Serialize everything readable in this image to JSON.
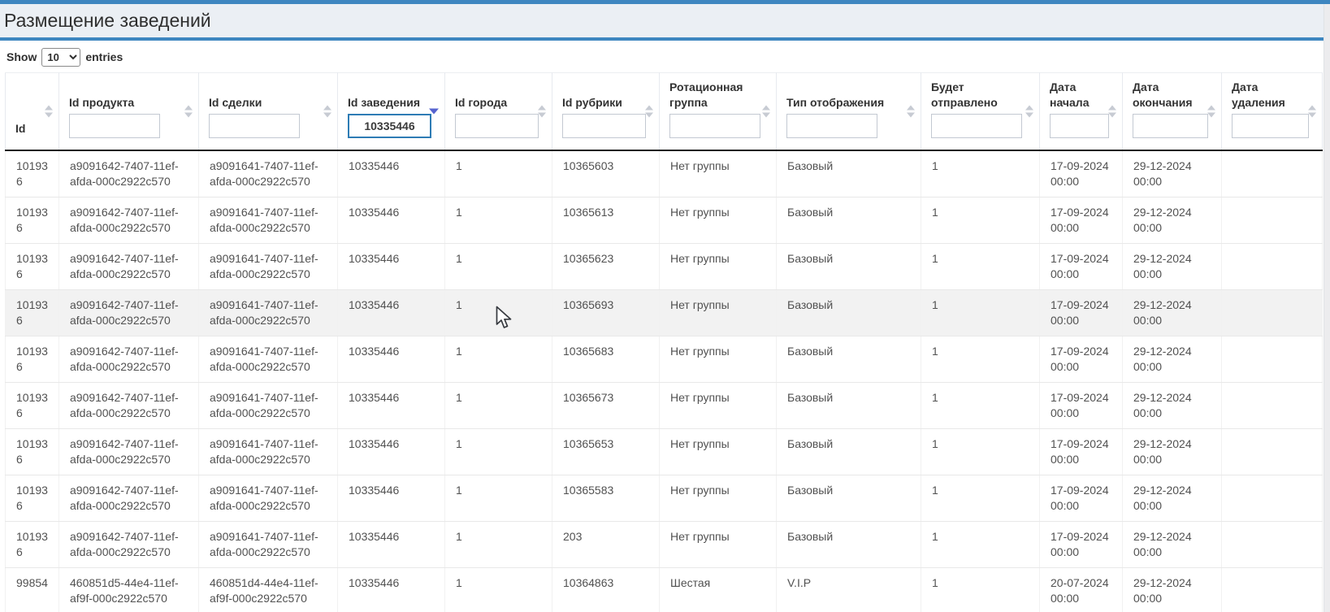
{
  "page": {
    "title": "Размещение заведений"
  },
  "toolbar": {
    "show_label": "Show",
    "entries_label": "entries",
    "page_length": "10",
    "page_length_options": [
      "10"
    ]
  },
  "colors": {
    "accent_blue": "#3e86c0",
    "title_band_bg": "#ebeff4",
    "active_sort_arrow": "#5663cf",
    "inactive_sort_arrow": "#c7cbd3",
    "hovered_row_bg": "#f2f2f2",
    "focused_filter_border": "#2e7cb5"
  },
  "table": {
    "columns": [
      {
        "label": "Id",
        "has_filter": false,
        "sort": "inactive",
        "filter_value": "",
        "filter_focused": false
      },
      {
        "label": "Id продукта",
        "has_filter": true,
        "sort": "inactive",
        "filter_value": "",
        "filter_focused": false
      },
      {
        "label": "Id сделки",
        "has_filter": true,
        "sort": "inactive",
        "filter_value": "",
        "filter_focused": false
      },
      {
        "label": "Id заведения",
        "has_filter": true,
        "sort": "desc",
        "filter_value": "10335446",
        "filter_focused": true
      },
      {
        "label": "Id города",
        "has_filter": true,
        "sort": "inactive",
        "filter_value": "",
        "filter_focused": false
      },
      {
        "label": "Id рубрики",
        "has_filter": true,
        "sort": "inactive",
        "filter_value": "",
        "filter_focused": false
      },
      {
        "label": "Ротационная группа",
        "has_filter": true,
        "sort": "inactive",
        "filter_value": "",
        "filter_focused": false
      },
      {
        "label": "Тип отображения",
        "has_filter": true,
        "sort": "inactive",
        "filter_value": "",
        "filter_focused": false
      },
      {
        "label": "Будет отправлено",
        "has_filter": true,
        "sort": "inactive",
        "filter_value": "",
        "filter_focused": false
      },
      {
        "label": "Дата начала",
        "has_filter": true,
        "sort": "inactive",
        "filter_value": "",
        "filter_focused": false
      },
      {
        "label": "Дата окончания",
        "has_filter": true,
        "sort": "inactive",
        "filter_value": "",
        "filter_focused": false
      },
      {
        "label": "Дата удаления",
        "has_filter": true,
        "sort": "inactive",
        "filter_value": "",
        "filter_focused": false
      }
    ],
    "hovered_row_index": 3,
    "rows": [
      [
        "101936",
        "a9091642-7407-11ef-afda-000c2922c570",
        "a9091641-7407-11ef-afda-000c2922c570",
        "10335446",
        "1",
        "10365603",
        "Нет группы",
        "Базовый",
        "1",
        "17-09-2024 00:00",
        "29-12-2024 00:00",
        ""
      ],
      [
        "101936",
        "a9091642-7407-11ef-afda-000c2922c570",
        "a9091641-7407-11ef-afda-000c2922c570",
        "10335446",
        "1",
        "10365613",
        "Нет группы",
        "Базовый",
        "1",
        "17-09-2024 00:00",
        "29-12-2024 00:00",
        ""
      ],
      [
        "101936",
        "a9091642-7407-11ef-afda-000c2922c570",
        "a9091641-7407-11ef-afda-000c2922c570",
        "10335446",
        "1",
        "10365623",
        "Нет группы",
        "Базовый",
        "1",
        "17-09-2024 00:00",
        "29-12-2024 00:00",
        ""
      ],
      [
        "101936",
        "a9091642-7407-11ef-afda-000c2922c570",
        "a9091641-7407-11ef-afda-000c2922c570",
        "10335446",
        "1",
        "10365693",
        "Нет группы",
        "Базовый",
        "1",
        "17-09-2024 00:00",
        "29-12-2024 00:00",
        ""
      ],
      [
        "101936",
        "a9091642-7407-11ef-afda-000c2922c570",
        "a9091641-7407-11ef-afda-000c2922c570",
        "10335446",
        "1",
        "10365683",
        "Нет группы",
        "Базовый",
        "1",
        "17-09-2024 00:00",
        "29-12-2024 00:00",
        ""
      ],
      [
        "101936",
        "a9091642-7407-11ef-afda-000c2922c570",
        "a9091641-7407-11ef-afda-000c2922c570",
        "10335446",
        "1",
        "10365673",
        "Нет группы",
        "Базовый",
        "1",
        "17-09-2024 00:00",
        "29-12-2024 00:00",
        ""
      ],
      [
        "101936",
        "a9091642-7407-11ef-afda-000c2922c570",
        "a9091641-7407-11ef-afda-000c2922c570",
        "10335446",
        "1",
        "10365653",
        "Нет группы",
        "Базовый",
        "1",
        "17-09-2024 00:00",
        "29-12-2024 00:00",
        ""
      ],
      [
        "101936",
        "a9091642-7407-11ef-afda-000c2922c570",
        "a9091641-7407-11ef-afda-000c2922c570",
        "10335446",
        "1",
        "10365583",
        "Нет группы",
        "Базовый",
        "1",
        "17-09-2024 00:00",
        "29-12-2024 00:00",
        ""
      ],
      [
        "101936",
        "a9091642-7407-11ef-afda-000c2922c570",
        "a9091641-7407-11ef-afda-000c2922c570",
        "10335446",
        "1",
        "203",
        "Нет группы",
        "Базовый",
        "1",
        "17-09-2024 00:00",
        "29-12-2024 00:00",
        ""
      ],
      [
        "99854",
        "460851d5-44e4-11ef-af9f-000c2922c570",
        "460851d4-44e4-11ef-af9f-000c2922c570",
        "10335446",
        "1",
        "10364863",
        "Шестая",
        "V.I.P",
        "1",
        "20-07-2024 00:00",
        "29-12-2024 00:00",
        ""
      ]
    ]
  }
}
